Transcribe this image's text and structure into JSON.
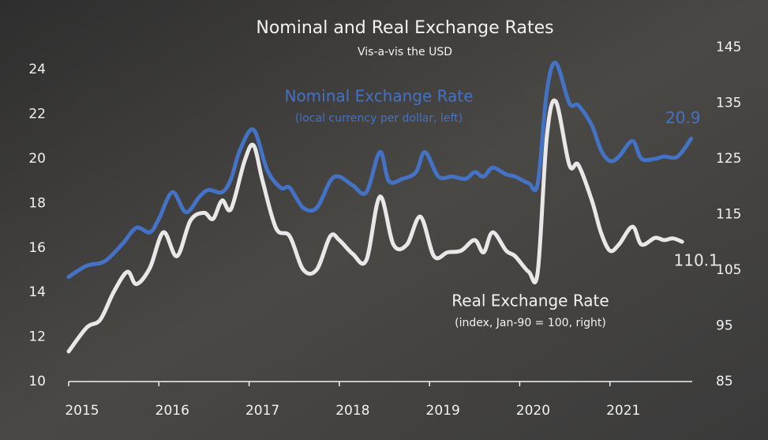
{
  "chart_data": {
    "type": "line",
    "title": "Nominal and Real Exchange Rates",
    "subtitle": "Vis-a-vis the USD",
    "xlim": [
      2015,
      2022
    ],
    "xticks": [
      2015,
      2016,
      2017,
      2018,
      2019,
      2020,
      2021
    ],
    "ylim": [
      10,
      25
    ],
    "yticks": [
      10,
      12,
      14,
      16,
      18,
      20,
      22,
      24
    ],
    "y2lim": [
      85,
      145
    ],
    "y2ticks": [
      85,
      95,
      105,
      115,
      125,
      135,
      145
    ],
    "series": [
      {
        "name": "Nominal Exchange Rate",
        "note": "(local currency per dollar, left)",
        "color": "#4472c4",
        "axis": "y",
        "x": [
          2015.0,
          2015.2,
          2015.4,
          2015.6,
          2015.75,
          2015.9,
          2016.0,
          2016.15,
          2016.3,
          2016.45,
          2016.55,
          2016.7,
          2016.8,
          2016.9,
          2017.05,
          2017.2,
          2017.35,
          2017.45,
          2017.6,
          2017.75,
          2017.9,
          2018.0,
          2018.15,
          2018.3,
          2018.45,
          2018.55,
          2018.7,
          2018.85,
          2018.95,
          2019.1,
          2019.25,
          2019.4,
          2019.5,
          2019.6,
          2019.7,
          2019.85,
          2019.95,
          2020.1,
          2020.2,
          2020.3,
          2020.4,
          2020.55,
          2020.65,
          2020.8,
          2020.9,
          2021.0,
          2021.1,
          2021.25,
          2021.35,
          2021.5,
          2021.6,
          2021.75,
          2021.9
        ],
        "values": [
          14.7,
          15.2,
          15.4,
          16.2,
          16.9,
          16.7,
          17.3,
          18.5,
          17.6,
          18.3,
          18.6,
          18.5,
          19.1,
          20.4,
          21.3,
          19.5,
          18.7,
          18.7,
          17.8,
          17.8,
          19.0,
          19.2,
          18.8,
          18.5,
          20.3,
          19.0,
          19.1,
          19.4,
          20.3,
          19.2,
          19.2,
          19.1,
          19.4,
          19.2,
          19.6,
          19.3,
          19.2,
          18.9,
          18.9,
          23.0,
          24.3,
          22.5,
          22.4,
          21.5,
          20.4,
          19.9,
          20.1,
          20.8,
          20.0,
          20.0,
          20.1,
          20.1,
          20.9
        ]
      },
      {
        "name": "Real Exchange Rate",
        "note": "(index, Jan-90 = 100, right)",
        "color": "#e8e8e8",
        "axis": "y2",
        "x": [
          2015.0,
          2015.2,
          2015.35,
          2015.5,
          2015.65,
          2015.75,
          2015.9,
          2016.05,
          2016.2,
          2016.35,
          2016.5,
          2016.6,
          2016.7,
          2016.8,
          2016.95,
          2017.05,
          2017.15,
          2017.3,
          2017.45,
          2017.6,
          2017.75,
          2017.9,
          2018.0,
          2018.15,
          2018.3,
          2018.45,
          2018.6,
          2018.75,
          2018.9,
          2019.05,
          2019.2,
          2019.35,
          2019.5,
          2019.6,
          2019.7,
          2019.85,
          2019.95,
          2020.1,
          2020.2,
          2020.3,
          2020.4,
          2020.55,
          2020.65,
          2020.8,
          2020.9,
          2021.0,
          2021.1,
          2021.25,
          2021.35,
          2021.5,
          2021.6,
          2021.7,
          2021.8
        ],
        "values": [
          90.4,
          94.7,
          96.1,
          101.1,
          104.7,
          102.5,
          105.4,
          111.8,
          107.5,
          113.9,
          115.3,
          114.2,
          117.5,
          116.0,
          124.6,
          127.4,
          121.0,
          112.5,
          111.1,
          105.1,
          105.1,
          111.1,
          110.4,
          107.9,
          106.8,
          118.2,
          109.6,
          109.6,
          114.6,
          107.5,
          108.2,
          108.5,
          110.4,
          108.2,
          111.8,
          108.5,
          107.5,
          104.7,
          104.7,
          128.9,
          135.3,
          123.9,
          123.9,
          117.5,
          111.8,
          108.5,
          109.6,
          112.8,
          109.6,
          110.8,
          110.4,
          110.7,
          110.1
        ]
      }
    ]
  }
}
